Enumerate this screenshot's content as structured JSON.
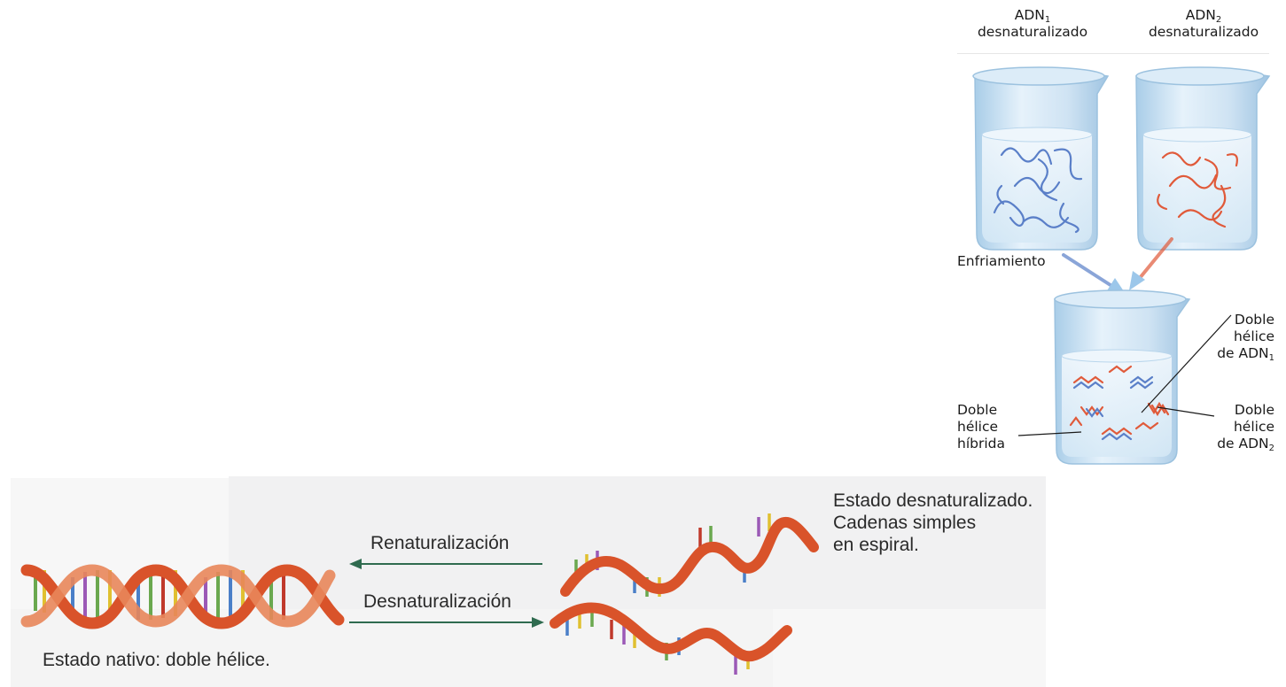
{
  "top_figure": {
    "beaker1_label_main": "ADN",
    "beaker1_label_sub": "1",
    "beaker1_label_line2": "desnaturalizado",
    "beaker2_label_main": "ADN",
    "beaker2_label_sub": "2",
    "beaker2_label_line2": "desnaturalizado",
    "cooling_label": "Enfriamiento",
    "dna1_helix_line1": "Doble",
    "dna1_helix_line2": "hélice",
    "dna1_helix_line3": "de ADN",
    "dna1_helix_sub": "1",
    "hybrid_line1": "Doble",
    "hybrid_line2": "hélice",
    "hybrid_line3": "híbrida",
    "dna2_helix_line1": "Doble",
    "dna2_helix_line2": "hélice",
    "dna2_helix_line3": "de ADN",
    "dna2_helix_sub": "2"
  },
  "bottom_figure": {
    "renaturation_label": "Renaturalización",
    "denaturation_label": "Desnaturalización",
    "denatured_state_line1": "Estado desnaturalizado.",
    "denatured_state_line2": "Cadenas simples",
    "denatured_state_line3": "en espiral.",
    "native_state_label": "Estado nativo: doble hélice."
  },
  "colors": {
    "dna1_strand": "#5a7fc8",
    "dna2_strand": "#e05a3a",
    "helix_backbone_dark": "#d9532a",
    "helix_backbone_light": "#e8865a",
    "arrow_green": "#2f6b4f",
    "beaker_glass": "#cfe6f5"
  }
}
